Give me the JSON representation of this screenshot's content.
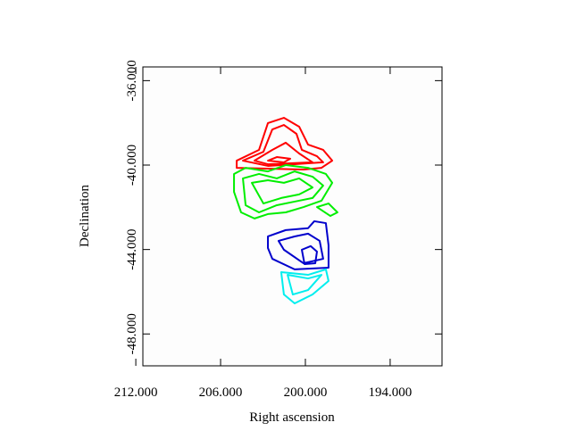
{
  "chart_data": {
    "type": "contour",
    "xlabel": "Right ascension",
    "ylabel": "Declination",
    "xlim": [
      211.5,
      190.33
    ],
    "ylim": [
      -49.51,
      -35.35
    ],
    "xticks": [
      {
        "value": 212,
        "label": "212.000"
      },
      {
        "value": 206,
        "label": "206.000"
      },
      {
        "value": 200,
        "label": "200.000"
      },
      {
        "value": 194,
        "label": "194.000"
      }
    ],
    "yticks": [
      {
        "value": -36,
        "label": "-36.000"
      },
      {
        "value": -40,
        "label": "-40.000"
      },
      {
        "value": -44,
        "label": "-44.000"
      },
      {
        "value": -48,
        "label": "-48.000"
      }
    ],
    "contours": [
      {
        "color": "#ff0000",
        "lines": [
          {
            "x": [
              204.86,
              203.28,
              202.65,
              201.52,
              200.44,
              199.81,
              198.74,
              198.1,
              198.86,
              200.13,
              204.86
            ],
            "y": [
              -39.79,
              -39.28,
              -38.01,
              -37.76,
              -38.18,
              -39.03,
              -39.28,
              -39.79,
              -40.13,
              -40.21,
              -40.13
            ]
          },
          {
            "x": [
              204.42,
              202.97,
              202.34,
              201.52,
              200.63,
              200.25,
              199.18,
              198.74,
              202.65
            ],
            "y": [
              -39.79,
              -39.37,
              -38.31,
              -38.1,
              -38.52,
              -39.28,
              -39.58,
              -39.87,
              -40.04
            ]
          },
          {
            "x": [
              203.6,
              202.34,
              201.39,
              200.44,
              199.49,
              202.65
            ],
            "y": [
              -39.79,
              -39.28,
              -38.94,
              -39.45,
              -39.87,
              -39.96
            ]
          },
          {
            "x": [
              202.65,
              202.02,
              201.07,
              201.52
            ],
            "y": [
              -39.79,
              -39.62,
              -39.7,
              -39.87
            ]
          }
        ]
      },
      {
        "color": "#00ee00",
        "lines": [
          {
            "x": [
              205.05,
              204.23,
              202.65,
              201.39,
              199.81,
              198.55,
              198.1,
              198.86,
              200.13,
              201.39,
              202.65,
              203.6,
              204.55,
              205.05
            ],
            "y": [
              -40.42,
              -40.13,
              -40.3,
              -40.0,
              -40.13,
              -40.42,
              -40.84,
              -41.69,
              -41.99,
              -42.24,
              -42.32,
              -42.53,
              -42.24,
              -41.27
            ]
          },
          {
            "x": [
              204.42,
              203.28,
              202.02,
              200.76,
              199.49,
              198.74,
              199.49,
              200.76,
              202.02,
              203.28,
              204.23
            ],
            "y": [
              -40.63,
              -40.42,
              -40.63,
              -40.3,
              -40.55,
              -40.97,
              -41.56,
              -41.73,
              -41.9,
              -42.24,
              -41.9
            ]
          },
          {
            "x": [
              203.79,
              202.65,
              201.52,
              200.44,
              199.49,
              200.44,
              201.71,
              202.97
            ],
            "y": [
              -40.84,
              -40.72,
              -40.84,
              -40.63,
              -41.06,
              -41.39,
              -41.56,
              -41.82
            ]
          },
          {
            "x": [
              199.18,
              198.36,
              197.73,
              198.23
            ],
            "y": [
              -41.99,
              -41.82,
              -42.24,
              -42.41
            ]
          }
        ]
      },
      {
        "color": "#0000cc",
        "lines": [
          {
            "x": [
              202.65,
              201.39,
              199.81,
              199.37,
              198.55,
              198.36,
              198.36,
              200.76,
              202.34,
              202.65
            ],
            "y": [
              -43.38,
              -43.08,
              -42.99,
              -42.66,
              -42.75,
              -43.8,
              -44.86,
              -44.94,
              -44.44,
              -43.93
            ]
          },
          {
            "x": [
              201.9,
              200.76,
              199.81,
              198.99,
              198.74,
              200.13,
              201.52
            ],
            "y": [
              -43.59,
              -43.38,
              -43.25,
              -43.59,
              -44.44,
              -44.65,
              -44.01
            ]
          },
          {
            "x": [
              200.25,
              199.62,
              199.18,
              199.3,
              200.06
            ],
            "y": [
              -44.01,
              -43.84,
              -44.1,
              -44.65,
              -44.69
            ]
          }
        ]
      },
      {
        "color": "#00eeee",
        "lines": [
          {
            "x": [
              201.71,
              199.81,
              198.55,
              198.36,
              199.49,
              200.76,
              201.52
            ],
            "y": [
              -45.07,
              -45.2,
              -44.94,
              -45.49,
              -46.13,
              -46.55,
              -46.13
            ]
          },
          {
            "x": [
              201.26,
              199.81,
              198.86,
              199.81,
              200.89
            ],
            "y": [
              -45.2,
              -45.37,
              -45.2,
              -45.92,
              -46.13
            ]
          }
        ]
      }
    ]
  }
}
